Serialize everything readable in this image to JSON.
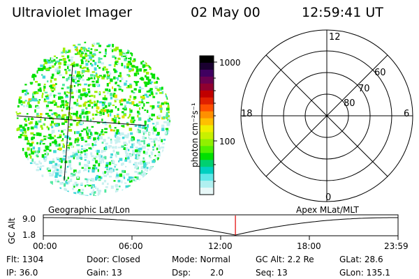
{
  "header": {
    "instrument": "Ultraviolet Imager",
    "date": "02 May 00",
    "time": "12:59:41 UT"
  },
  "colorbar": {
    "unit_label": "photon cm⁻²s⁻¹",
    "ticks": [
      "1000",
      "100"
    ],
    "colors": [
      "#000000",
      "#1a0030",
      "#400060",
      "#6a0050",
      "#900030",
      "#c00000",
      "#e02000",
      "#ff5000",
      "#ff9000",
      "#ffc000",
      "#f0f000",
      "#c8f000",
      "#90f000",
      "#50f000",
      "#00e000",
      "#00d070",
      "#00d0c0",
      "#60e8e8",
      "#b0f0f0",
      "#e8f8f8"
    ]
  },
  "polar": {
    "mlt_labels": [
      "12",
      "18",
      "6",
      "0"
    ],
    "lat_labels": [
      "60",
      "70",
      "80"
    ]
  },
  "image": {
    "speckle_colors": [
      "#00e000",
      "#9af000",
      "#50e8a0",
      "#40d8d8",
      "#c8f0f0",
      "#e0e000",
      "#ffb000"
    ]
  },
  "timeline": {
    "left_label": "Geographic Lat/Lon",
    "right_label": "Apex MLat/MLT",
    "axis_label": "GC Alt",
    "y_ticks": [
      "9.0",
      "1.8"
    ],
    "x_ticks": [
      "00:00",
      "06:00",
      "12:00",
      "18:00",
      "23:59"
    ],
    "current_time_fraction": 0.5416
  },
  "status": {
    "flt": "Flt: 1304",
    "ip": "IP: 36.0",
    "door": "Door: Closed",
    "gain": "Gain: 13",
    "mode": "Mode: Normal",
    "dsp_label": "Dsp:",
    "dsp_value": "2.0",
    "gcalt": "GC Alt: 2.2 Re",
    "seq": "Seq: 13",
    "glat": "GLat:  28.6",
    "glon": "GLon: 135.1"
  }
}
